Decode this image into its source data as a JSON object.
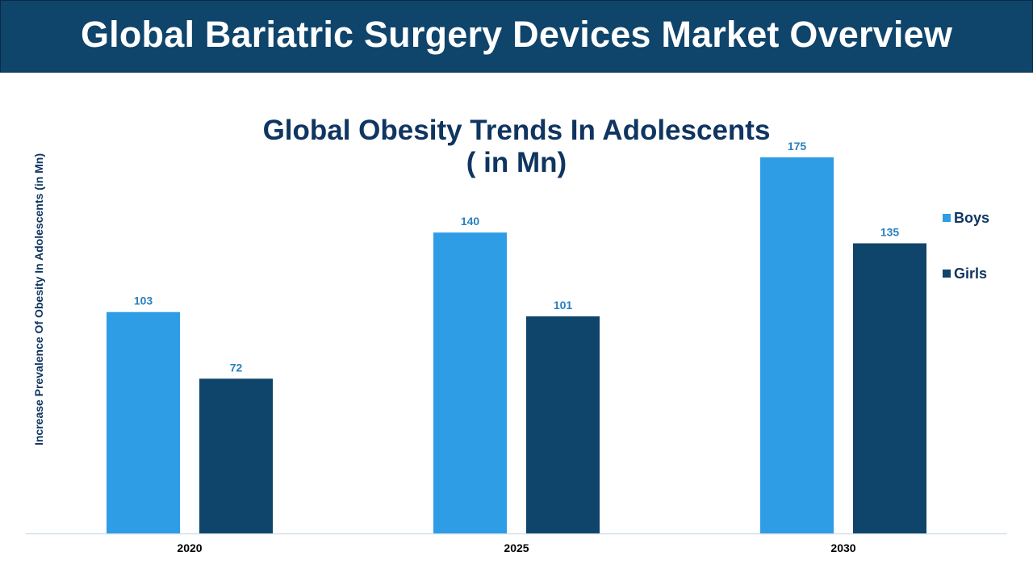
{
  "header": {
    "title": "Global Bariatric Surgery Devices Market Overview"
  },
  "colors": {
    "header_bg": "#0f446b",
    "boys": "#2e9de6",
    "girls": "#0f446b",
    "label": "#2a7fc0",
    "title": "#0f3560",
    "axis": "#cfe0ea"
  },
  "chart_data": {
    "type": "bar",
    "title": "Global Obesity Trends In Adolescents",
    "subtitle": "( in Mn)",
    "xlabel": "",
    "ylabel": "Increase  Prevalence Of Obesity In Adolescents (in Mn)",
    "categories": [
      "2020",
      "2025",
      "2030"
    ],
    "series": [
      {
        "name": "Boys",
        "values": [
          103,
          140,
          175
        ]
      },
      {
        "name": "Girls",
        "values": [
          72,
          101,
          135
        ]
      }
    ],
    "ylim": [
      0,
      175
    ],
    "grid": false,
    "legend": "right",
    "data_labels": true
  }
}
